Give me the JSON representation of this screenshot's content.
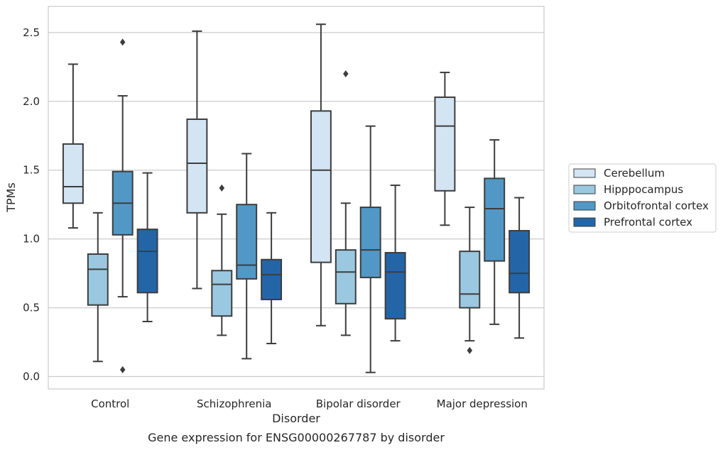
{
  "chart_data": {
    "type": "box",
    "title": "",
    "caption": "Gene expression for ENSG00000267787 by disorder",
    "xlabel": "Disorder",
    "ylabel": "TPMs",
    "ylim": [
      -0.09,
      2.69
    ],
    "yticks": [
      0.0,
      0.5,
      1.0,
      1.5,
      2.0,
      2.5
    ],
    "ytick_labels": [
      "0.0",
      "0.5",
      "1.0",
      "1.5",
      "2.0",
      "2.5"
    ],
    "grid": "horizontal",
    "legend_position": "right",
    "categories": [
      "Control",
      "Schizophrenia",
      "Bipolar disorder",
      "Major depression"
    ],
    "series": [
      {
        "name": "Cerebellum",
        "color": "#d3e4f3",
        "boxes": [
          {
            "whisker_low": 1.08,
            "q1": 1.26,
            "median": 1.38,
            "q3": 1.69,
            "whisker_high": 2.27,
            "outliers": []
          },
          {
            "whisker_low": 0.64,
            "q1": 1.19,
            "median": 1.55,
            "q3": 1.87,
            "whisker_high": 2.51,
            "outliers": []
          },
          {
            "whisker_low": 0.37,
            "q1": 0.83,
            "median": 1.5,
            "q3": 1.93,
            "whisker_high": 2.56,
            "outliers": []
          },
          {
            "whisker_low": 1.1,
            "q1": 1.35,
            "median": 1.82,
            "q3": 2.03,
            "whisker_high": 2.21,
            "outliers": []
          }
        ]
      },
      {
        "name": "Hipppocampus",
        "color": "#9ac8e0",
        "boxes": [
          {
            "whisker_low": 0.11,
            "q1": 0.52,
            "median": 0.78,
            "q3": 0.89,
            "whisker_high": 1.19,
            "outliers": []
          },
          {
            "whisker_low": 0.3,
            "q1": 0.44,
            "median": 0.67,
            "q3": 0.77,
            "whisker_high": 1.18,
            "outliers": [
              1.37
            ]
          },
          {
            "whisker_low": 0.3,
            "q1": 0.53,
            "median": 0.76,
            "q3": 0.92,
            "whisker_high": 1.26,
            "outliers": [
              2.2
            ]
          },
          {
            "whisker_low": 0.26,
            "q1": 0.5,
            "median": 0.6,
            "q3": 0.91,
            "whisker_high": 1.23,
            "outliers": [
              0.19
            ]
          }
        ]
      },
      {
        "name": "Orbitofrontal cortex",
        "color": "#5198c6",
        "boxes": [
          {
            "whisker_low": 0.58,
            "q1": 1.03,
            "median": 1.26,
            "q3": 1.49,
            "whisker_high": 2.04,
            "outliers": [
              0.05,
              2.43
            ]
          },
          {
            "whisker_low": 0.13,
            "q1": 0.71,
            "median": 0.81,
            "q3": 1.25,
            "whisker_high": 1.62,
            "outliers": []
          },
          {
            "whisker_low": 0.03,
            "q1": 0.72,
            "median": 0.92,
            "q3": 1.23,
            "whisker_high": 1.82,
            "outliers": []
          },
          {
            "whisker_low": 0.38,
            "q1": 0.84,
            "median": 1.22,
            "q3": 1.44,
            "whisker_high": 1.72,
            "outliers": []
          }
        ]
      },
      {
        "name": "Prefrontal cortex",
        "color": "#2465a8",
        "boxes": [
          {
            "whisker_low": 0.4,
            "q1": 0.61,
            "median": 0.91,
            "q3": 1.07,
            "whisker_high": 1.48,
            "outliers": []
          },
          {
            "whisker_low": 0.24,
            "q1": 0.56,
            "median": 0.74,
            "q3": 0.85,
            "whisker_high": 1.19,
            "outliers": []
          },
          {
            "whisker_low": 0.26,
            "q1": 0.42,
            "median": 0.76,
            "q3": 0.9,
            "whisker_high": 1.39,
            "outliers": []
          },
          {
            "whisker_low": 0.28,
            "q1": 0.61,
            "median": 0.75,
            "q3": 1.06,
            "whisker_high": 1.3,
            "outliers": []
          }
        ]
      }
    ]
  }
}
